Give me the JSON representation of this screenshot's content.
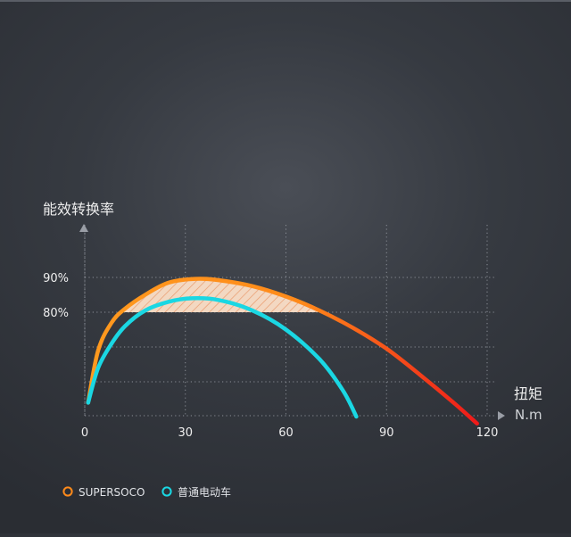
{
  "chart_data": {
    "type": "line",
    "ylabel": "能效转换率",
    "xlabel": "扭矩",
    "xunit": "N.m",
    "x_ticks": [
      "0",
      "30",
      "60",
      "90",
      "120"
    ],
    "y_ticks": [
      "90%",
      "80%"
    ],
    "xlim": [
      0,
      120
    ],
    "ylim": [
      47,
      94
    ],
    "grid": true,
    "legend_position": "bottom-left",
    "highlight_threshold": 80,
    "series": [
      {
        "name": "SUPERSOCO",
        "color": "#ff8a1a",
        "color_end": "#ee1a1a",
        "x": [
          1,
          4,
          8,
          12,
          18,
          25,
          33,
          40,
          50,
          60,
          70,
          80,
          90,
          100,
          110,
          117
        ],
        "y": [
          54,
          69,
          77,
          81,
          85,
          88.5,
          89.6,
          89.2,
          87.5,
          84.5,
          80.5,
          75.5,
          69.5,
          62,
          54,
          48
        ]
      },
      {
        "name": "普通电动车",
        "color": "#1ad7e3",
        "x": [
          1,
          4,
          8,
          12,
          18,
          25,
          32,
          40,
          50,
          60,
          70,
          77,
          81
        ],
        "y": [
          54,
          64,
          71,
          76,
          80.5,
          83,
          84,
          83.5,
          80.5,
          75,
          66.5,
          57.5,
          50
        ]
      }
    ]
  }
}
